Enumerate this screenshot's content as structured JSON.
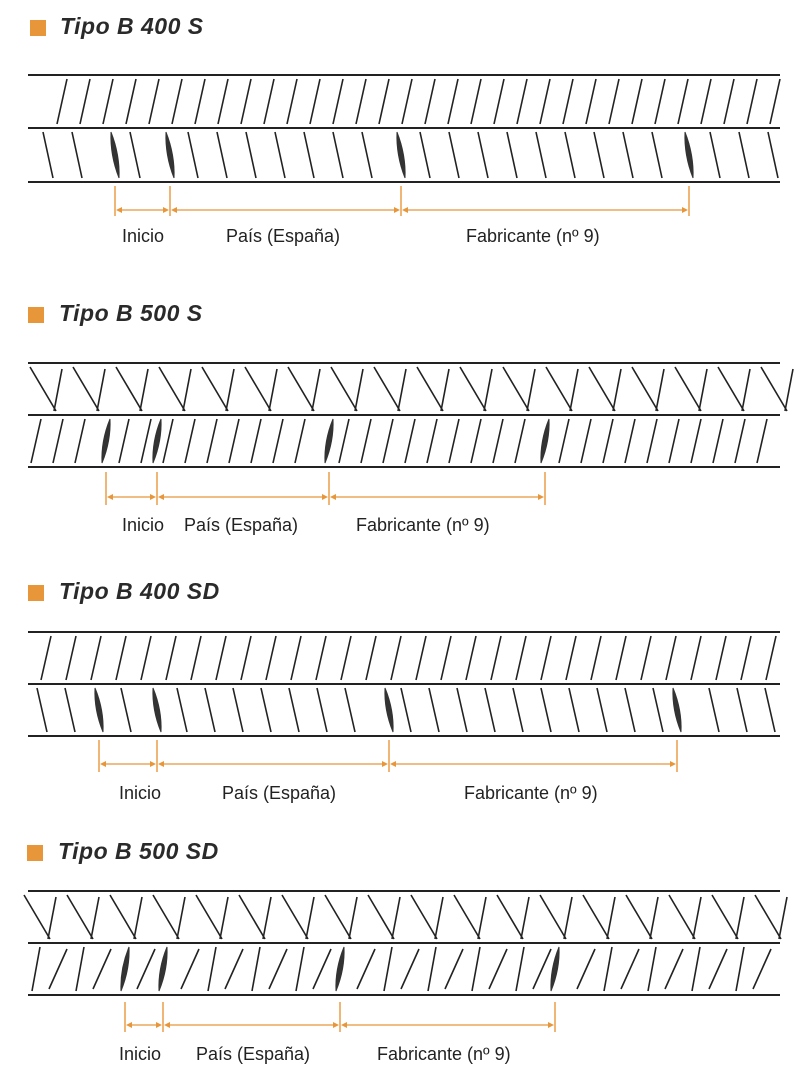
{
  "accent_color": "#e8963a",
  "sections": [
    {
      "title": "Tipo B 400 S",
      "labels": {
        "start": "Inicio",
        "country": "País (España)",
        "maker": "Fabricante (nº 9)"
      }
    },
    {
      "title": "Tipo B 500 S",
      "labels": {
        "start": "Inicio",
        "country": "País (España)",
        "maker": "Fabricante (nº 9)"
      }
    },
    {
      "title": "Tipo B 400 SD",
      "labels": {
        "start": "Inicio",
        "country": "País (España)",
        "maker": "Fabricante (nº 9)"
      }
    },
    {
      "title": "Tipo B 500 SD",
      "labels": {
        "start": "Inicio",
        "country": "País (España)",
        "maker": "Fabricante (nº 9)"
      }
    }
  ]
}
